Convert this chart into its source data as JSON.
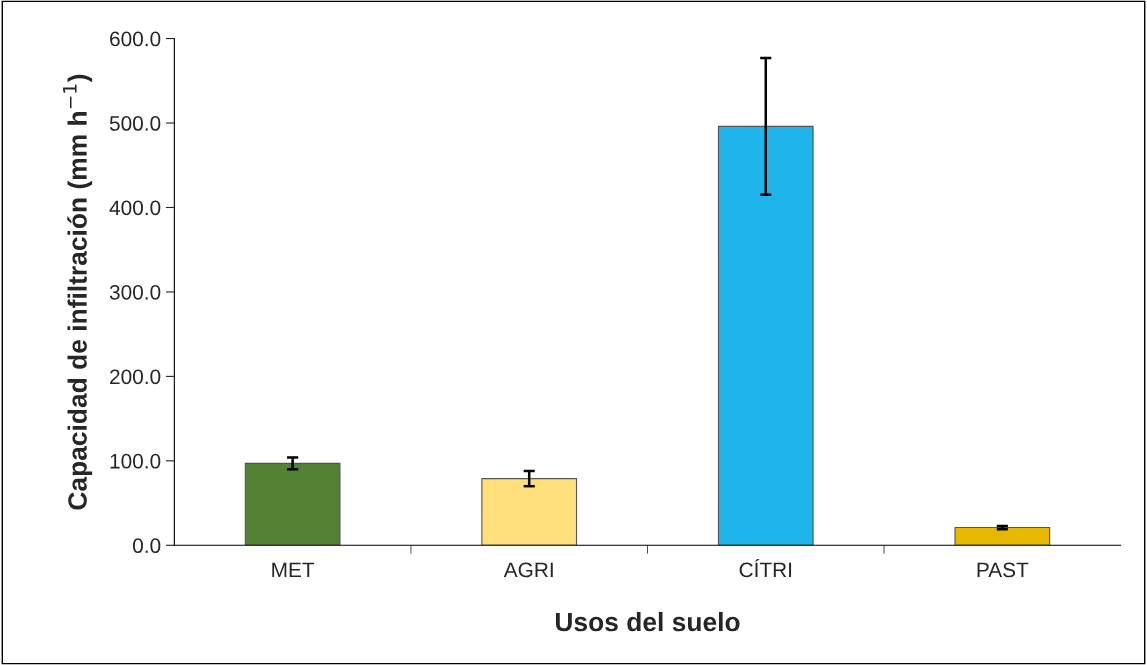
{
  "chart_data": {
    "type": "bar",
    "xlabel": "Usos del suelo",
    "ylabel": "Capacidad de infiltración (mm h$^{−1}$)",
    "categories": [
      "MET",
      "AGRI",
      "CÍTRI",
      "PAST"
    ],
    "values": [
      97,
      79,
      496,
      21
    ],
    "errors": [
      7,
      9,
      81,
      2
    ],
    "colors": [
      "#548235",
      "#ffe07a",
      "#1fb5ea",
      "#e6b800"
    ],
    "ylim": [
      0,
      600
    ],
    "yticks": [
      {
        "value": 0,
        "label": "0.0"
      },
      {
        "value": 100,
        "label": "100.0"
      },
      {
        "value": 200,
        "label": "200.0"
      },
      {
        "value": 300,
        "label": "300.0"
      },
      {
        "value": 400,
        "label": "400.0"
      },
      {
        "value": 500,
        "label": "500.0"
      },
      {
        "value": 600,
        "label": "600.0"
      }
    ],
    "grid": false
  }
}
